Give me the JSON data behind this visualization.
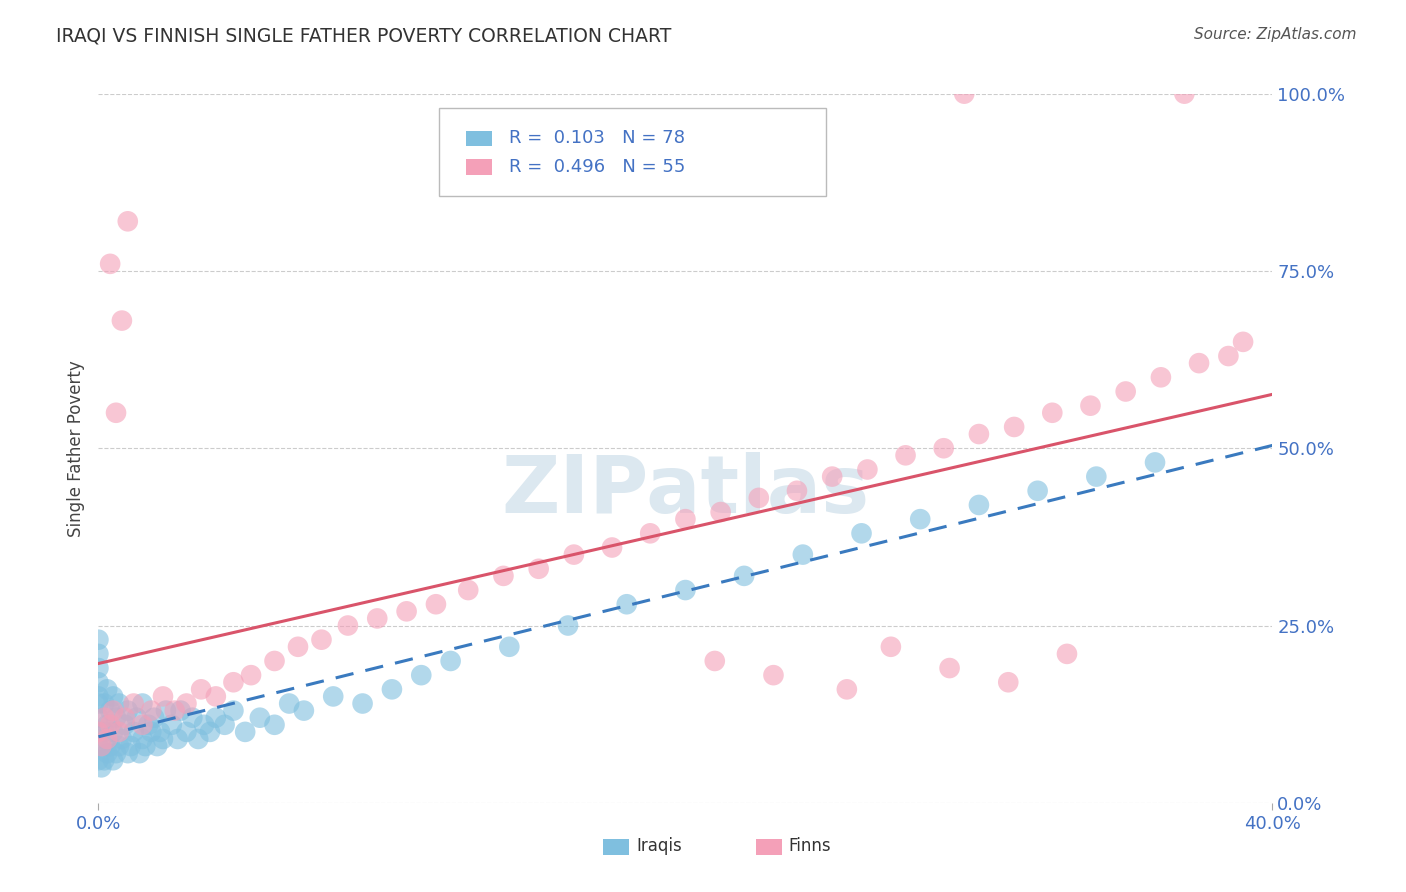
{
  "title": "IRAQI VS FINNISH SINGLE FATHER POVERTY CORRELATION CHART",
  "source": "Source: ZipAtlas.com",
  "ylabel": "Single Father Poverty",
  "ytick_labels": [
    "0.0%",
    "25.0%",
    "50.0%",
    "75.0%",
    "100.0%"
  ],
  "ytick_values": [
    0.0,
    0.25,
    0.5,
    0.75,
    1.0
  ],
  "xlim": [
    0.0,
    0.4
  ],
  "ylim": [
    0.0,
    1.0
  ],
  "iraqi_R": 0.103,
  "iraqi_N": 78,
  "finn_R": 0.496,
  "finn_N": 55,
  "legend_label_iraqi": "Iraqis",
  "legend_label_finn": "Finns",
  "iraqi_color": "#7fbfdf",
  "finn_color": "#f4a0b8",
  "iraqi_line_color": "#3a7abf",
  "finn_line_color": "#d9546a",
  "title_color": "#333333",
  "axis_label_color": "#4472c4",
  "legend_text_color": "#4472c4",
  "watermark_color": "#dce8f0",
  "source_color": "#555555",
  "grid_color": "#cccccc",
  "iraqi_x": [
    0.0,
    0.0,
    0.0,
    0.0,
    0.0,
    0.0,
    0.0,
    0.0,
    0.0,
    0.0,
    0.001,
    0.001,
    0.002,
    0.002,
    0.002,
    0.003,
    0.003,
    0.003,
    0.004,
    0.004,
    0.005,
    0.005,
    0.005,
    0.006,
    0.006,
    0.007,
    0.007,
    0.008,
    0.009,
    0.01,
    0.01,
    0.011,
    0.012,
    0.013,
    0.014,
    0.015,
    0.015,
    0.016,
    0.017,
    0.018,
    0.019,
    0.02,
    0.021,
    0.022,
    0.023,
    0.025,
    0.027,
    0.028,
    0.03,
    0.032,
    0.034,
    0.036,
    0.038,
    0.04,
    0.043,
    0.046,
    0.05,
    0.055,
    0.06,
    0.065,
    0.07,
    0.08,
    0.09,
    0.1,
    0.11,
    0.12,
    0.14,
    0.16,
    0.18,
    0.2,
    0.22,
    0.24,
    0.26,
    0.28,
    0.3,
    0.32,
    0.34,
    0.36
  ],
  "iraqi_y": [
    0.06,
    0.08,
    0.1,
    0.12,
    0.14,
    0.15,
    0.17,
    0.19,
    0.21,
    0.23,
    0.05,
    0.08,
    0.06,
    0.1,
    0.14,
    0.07,
    0.11,
    0.16,
    0.08,
    0.13,
    0.06,
    0.1,
    0.15,
    0.07,
    0.12,
    0.08,
    0.14,
    0.09,
    0.11,
    0.07,
    0.13,
    0.08,
    0.1,
    0.12,
    0.07,
    0.09,
    0.14,
    0.08,
    0.11,
    0.1,
    0.12,
    0.08,
    0.1,
    0.09,
    0.13,
    0.11,
    0.09,
    0.13,
    0.1,
    0.12,
    0.09,
    0.11,
    0.1,
    0.12,
    0.11,
    0.13,
    0.1,
    0.12,
    0.11,
    0.14,
    0.13,
    0.15,
    0.14,
    0.16,
    0.18,
    0.2,
    0.22,
    0.25,
    0.28,
    0.3,
    0.32,
    0.35,
    0.38,
    0.4,
    0.42,
    0.44,
    0.46,
    0.48
  ],
  "finn_x": [
    0.0,
    0.001,
    0.002,
    0.003,
    0.004,
    0.005,
    0.007,
    0.009,
    0.012,
    0.015,
    0.018,
    0.022,
    0.026,
    0.03,
    0.035,
    0.04,
    0.046,
    0.052,
    0.06,
    0.068,
    0.076,
    0.085,
    0.095,
    0.105,
    0.115,
    0.126,
    0.138,
    0.15,
    0.162,
    0.175,
    0.188,
    0.2,
    0.212,
    0.225,
    0.238,
    0.25,
    0.262,
    0.275,
    0.288,
    0.3,
    0.312,
    0.325,
    0.338,
    0.35,
    0.362,
    0.375,
    0.385,
    0.39,
    0.21,
    0.23,
    0.255,
    0.27,
    0.29,
    0.31,
    0.33
  ],
  "finn_y": [
    0.1,
    0.08,
    0.12,
    0.09,
    0.11,
    0.13,
    0.1,
    0.12,
    0.14,
    0.11,
    0.13,
    0.15,
    0.13,
    0.14,
    0.16,
    0.15,
    0.17,
    0.18,
    0.2,
    0.22,
    0.23,
    0.25,
    0.26,
    0.27,
    0.28,
    0.3,
    0.32,
    0.33,
    0.35,
    0.36,
    0.38,
    0.4,
    0.41,
    0.43,
    0.44,
    0.46,
    0.47,
    0.49,
    0.5,
    0.52,
    0.53,
    0.55,
    0.56,
    0.58,
    0.6,
    0.62,
    0.63,
    0.65,
    0.2,
    0.18,
    0.16,
    0.22,
    0.19,
    0.17,
    0.21
  ],
  "finn_outliers_x": [
    0.295,
    0.37,
    0.01,
    0.008,
    0.006,
    0.004
  ],
  "finn_outliers_y": [
    1.0,
    1.0,
    0.82,
    0.68,
    0.55,
    0.76
  ]
}
